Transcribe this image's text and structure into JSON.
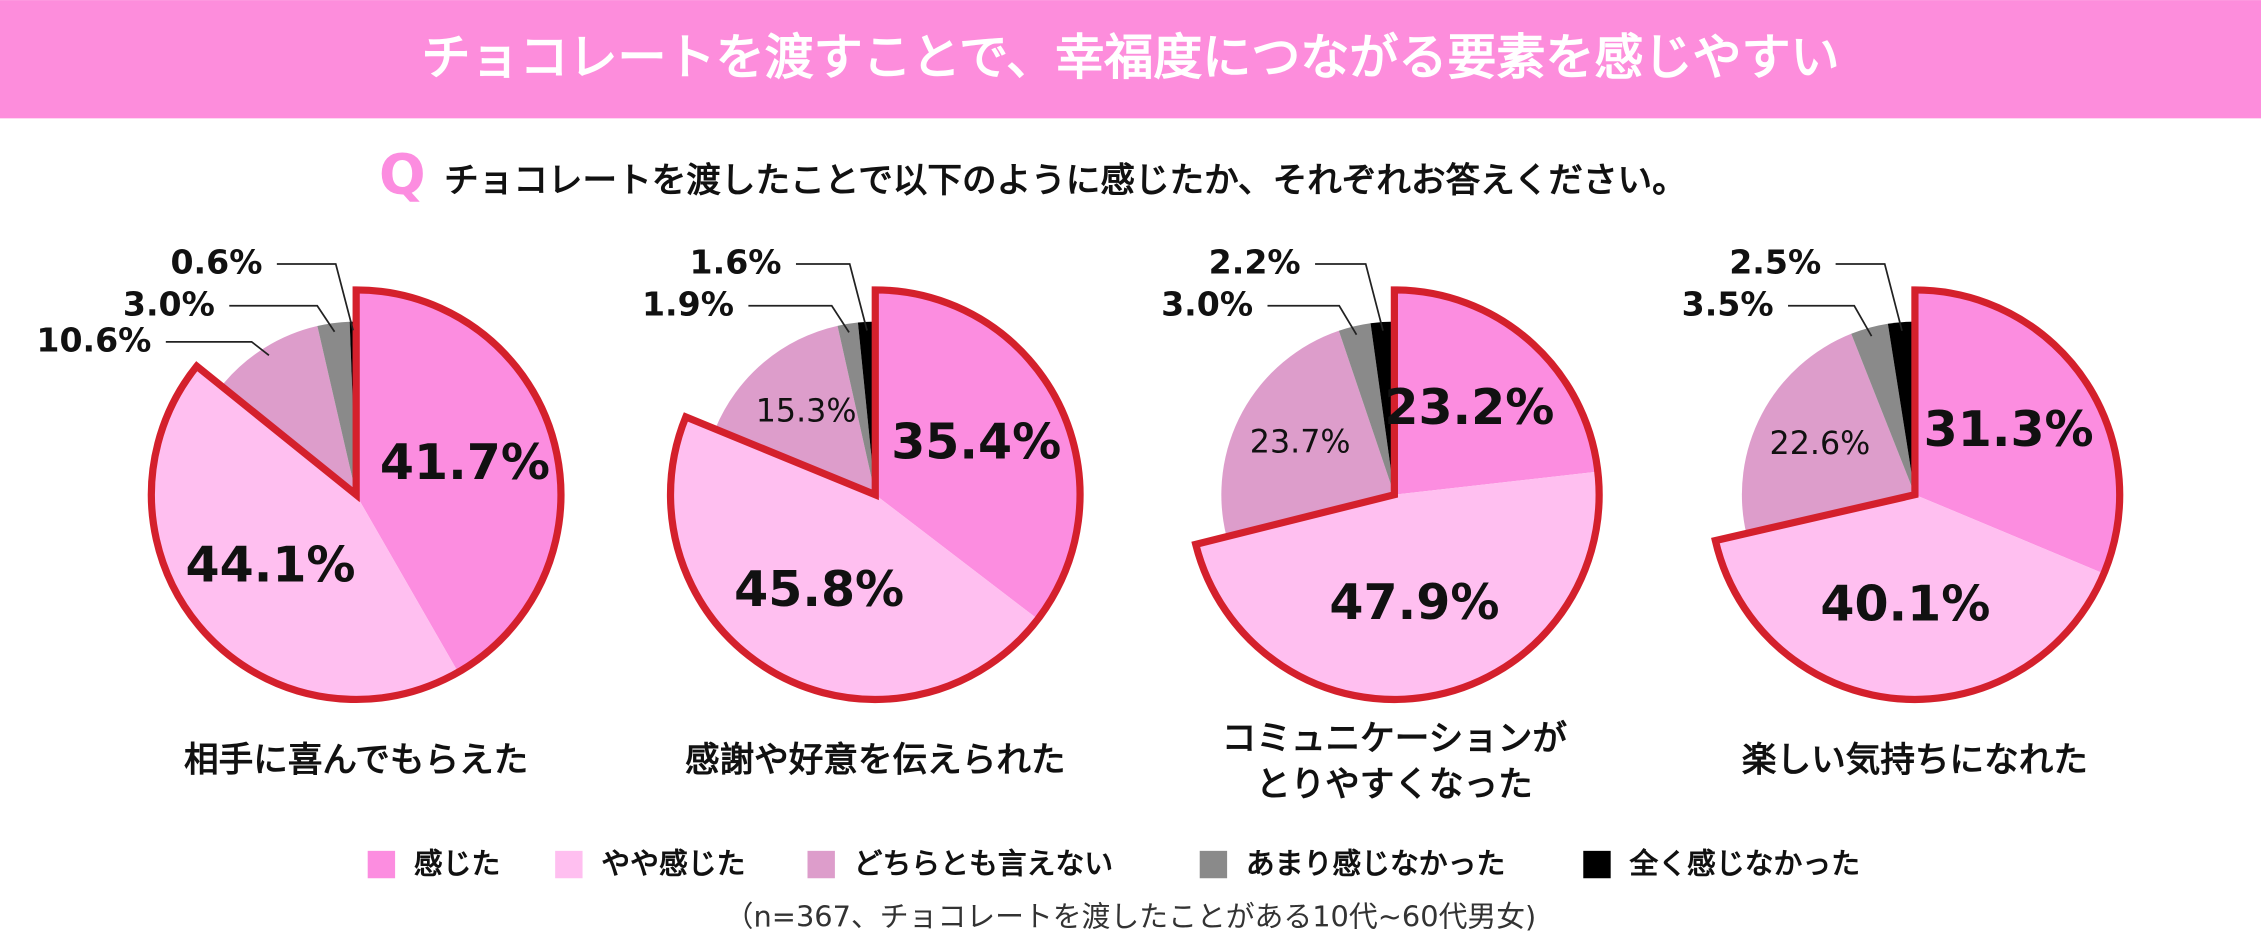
{
  "header": {
    "title": "チョコレートを渡すことで、幸福度につながる要素を感じやすい"
  },
  "question": {
    "mark": "Q",
    "text": "チョコレートを渡したことで以下のように感じたか、それぞれお答えください。"
  },
  "footnote": "（n=367、チョコレートを渡したことがある10代~60代男女)",
  "chart_data": [
    {
      "type": "pie",
      "title": [
        "相手に喜んでもらえた"
      ],
      "categories": [
        "感じた",
        "やや感じた",
        "どちらとも言えない",
        "あまり感じなかった",
        "全く感じなかった"
      ],
      "colors": [
        "#fc8de0",
        "#ffbff0",
        "#dd9dcb",
        "#8a8a8a",
        "#000000"
      ],
      "values": [
        41.7,
        44.1,
        10.6,
        3.0,
        0.6
      ],
      "value_labels": [
        "41.7%",
        "44.1%",
        "10.6%",
        "3.0%",
        "0.6%"
      ]
    },
    {
      "type": "pie",
      "title": [
        "感謝や好意を伝えられた"
      ],
      "categories": [
        "感じた",
        "やや感じた",
        "どちらとも言えない",
        "あまり感じなかった",
        "全く感じなかった"
      ],
      "colors": [
        "#fc8de0",
        "#ffbff0",
        "#dd9dcb",
        "#8a8a8a",
        "#000000"
      ],
      "values": [
        35.4,
        45.8,
        15.3,
        1.9,
        1.6
      ],
      "value_labels": [
        "35.4%",
        "45.8%",
        "15.3%",
        "1.9%",
        "1.6%"
      ]
    },
    {
      "type": "pie",
      "title": [
        "コミュニケーションが",
        "とりやすくなった"
      ],
      "categories": [
        "感じた",
        "やや感じた",
        "どちらとも言えない",
        "あまり感じなかった",
        "全く感じなかった"
      ],
      "colors": [
        "#fc8de0",
        "#ffbff0",
        "#dd9dcb",
        "#8a8a8a",
        "#000000"
      ],
      "values": [
        23.2,
        47.9,
        23.7,
        3.0,
        2.2
      ],
      "value_labels": [
        "23.2%",
        "47.9%",
        "23.7%",
        "3.0%",
        "2.2%"
      ]
    },
    {
      "type": "pie",
      "title": [
        "楽しい気持ちになれた"
      ],
      "categories": [
        "感じた",
        "やや感じた",
        "どちらとも言えない",
        "あまり感じなかった",
        "全く感じなかった"
      ],
      "colors": [
        "#fc8de0",
        "#ffbff0",
        "#dd9dcb",
        "#8a8a8a",
        "#000000"
      ],
      "values": [
        31.3,
        40.1,
        22.6,
        3.5,
        2.5
      ],
      "value_labels": [
        "31.3%",
        "40.1%",
        "22.6%",
        "3.5%",
        "2.5%"
      ]
    }
  ]
}
